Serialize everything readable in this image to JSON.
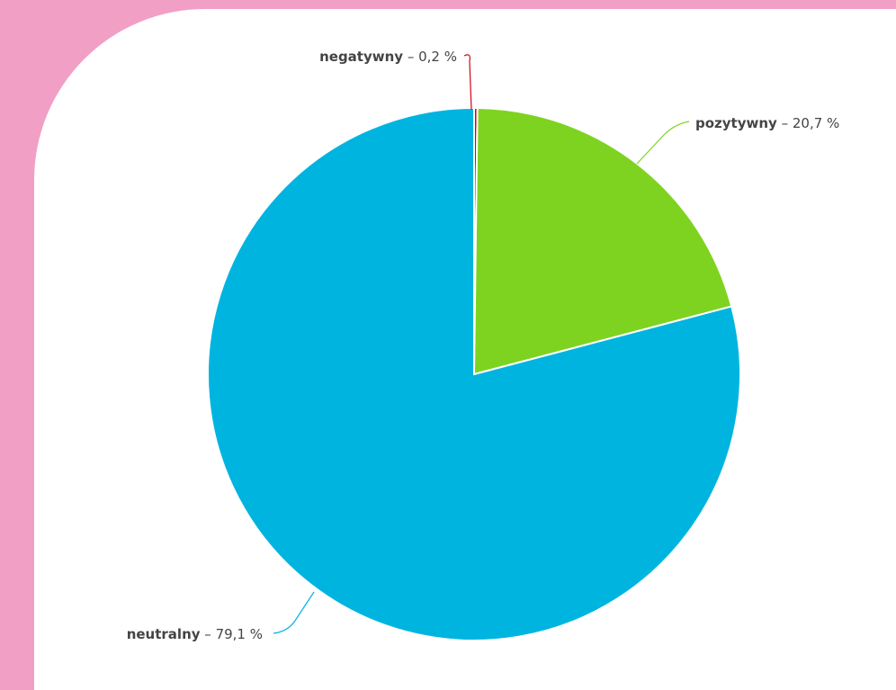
{
  "chart_data": {
    "type": "pie",
    "slices": [
      {
        "name": "negatywny",
        "value": 0.2,
        "value_label": "0,2 %",
        "color": "#d0021b"
      },
      {
        "name": "pozytywny",
        "value": 20.7,
        "value_label": "20,7 %",
        "color": "#7ed321"
      },
      {
        "name": "neutralny",
        "value": 79.1,
        "value_label": "79,1 %",
        "color": "#00b4e0"
      }
    ],
    "label_separator": " – ",
    "start_angle": "12 o'clock",
    "direction": "clockwise",
    "legend": "none",
    "title": ""
  },
  "colors": {
    "background_frame": "#f29fc5",
    "card": "#ffffff"
  }
}
